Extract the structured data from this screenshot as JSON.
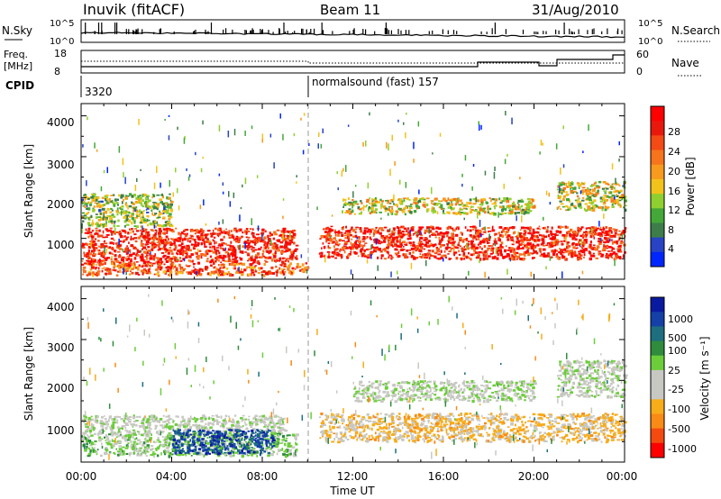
{
  "header": {
    "station": "Inuvik (fitACF)",
    "beam": "Beam 11",
    "date": "31/Aug/2010"
  },
  "panels": {
    "nsky": {
      "left_label": "N.Sky",
      "left_ticks": [
        "10^5",
        "10^0"
      ],
      "right_label": "N.Search",
      "right_ticks": [
        "10^5",
        "10^0"
      ]
    },
    "freq": {
      "left_label_1": "Freq.",
      "left_label_2": "[MHz]",
      "left_ticks": [
        "18",
        "8"
      ],
      "right_label": "Nave",
      "right_ticks": [
        "60",
        "0"
      ]
    },
    "cpid": {
      "label": "CPID",
      "first": "3320",
      "second": "normalsound (fast) 157"
    }
  },
  "colors": {
    "power_scale": [
      "#0026ff",
      "#2744c4",
      "#3d7d4a",
      "#44a838",
      "#8fd030",
      "#f2c21a",
      "#f79a1e",
      "#f7731c",
      "#f44a15",
      "#e8190c",
      "#ff0000"
    ],
    "velocity_scale": [
      "#ff0000",
      "#f44a10",
      "#f98a16",
      "#f7ac19",
      "#c8c8c3",
      "#c8c8c3",
      "#6ccd3a",
      "#2e8c3c",
      "#1d6e7f",
      "#1440a8",
      "#0a1aa0"
    ]
  },
  "power_colorbar": {
    "label": "Power [dB]",
    "ticks": [
      "28",
      "24",
      "20",
      "16",
      "12",
      "8",
      "4"
    ]
  },
  "velocity_colorbar": {
    "label": "Velocity [m s⁻¹]",
    "ticks": [
      "1000",
      "500",
      "100",
      "25",
      "-25",
      "-100",
      "-500",
      "-1000"
    ]
  },
  "chart_data": [
    {
      "type": "heatmap",
      "title": "Power",
      "ylabel": "Slant Range [km]",
      "yticks": [
        "4000",
        "3000",
        "2000",
        "1000"
      ],
      "ylim": [
        180,
        4500
      ],
      "xlim": [
        0,
        24
      ],
      "color_label": "Power [dB]",
      "color_range": [
        0,
        30
      ],
      "regions": [
        {
          "t0": 0.0,
          "t1": 9.5,
          "r0": 600,
          "r1": 1450,
          "value": 26
        },
        {
          "t0": 0.0,
          "t1": 10.0,
          "r0": 300,
          "r1": 600,
          "value": 22
        },
        {
          "t0": 0.0,
          "t1": 4.0,
          "r0": 1500,
          "r1": 2300,
          "value": 12
        },
        {
          "t0": 10.5,
          "t1": 24.0,
          "r0": 700,
          "r1": 1500,
          "value": 26
        },
        {
          "t0": 11.5,
          "t1": 20.0,
          "r0": 1800,
          "r1": 2200,
          "value": 14
        },
        {
          "t0": 21.0,
          "t1": 24.0,
          "r0": 1900,
          "r1": 2600,
          "value": 14
        }
      ]
    },
    {
      "type": "heatmap",
      "title": "Velocity",
      "ylabel": "Slant Range [km]",
      "yticks": [
        "4000",
        "3000",
        "2000",
        "1000"
      ],
      "ylim": [
        180,
        4500
      ],
      "xlim": [
        0,
        24
      ],
      "xlabel": "Time UT",
      "xticks": [
        "00:00",
        "04:00",
        "08:00",
        "12:00",
        "16:00",
        "20:00",
        "00:00"
      ],
      "color_label": "Velocity [m s⁻¹]",
      "color_range": [
        -1000,
        1000
      ],
      "regions": [
        {
          "t0": 0.0,
          "t1": 9.0,
          "r0": 900,
          "r1": 1350,
          "value": 0
        },
        {
          "t0": 0.0,
          "t1": 9.5,
          "r0": 350,
          "r1": 900,
          "value": 150
        },
        {
          "t0": 4.0,
          "t1": 8.5,
          "r0": 400,
          "r1": 1000,
          "value": 700
        },
        {
          "t0": 10.5,
          "t1": 24.0,
          "r0": 700,
          "r1": 1400,
          "value": -300
        },
        {
          "t0": 12.0,
          "t1": 20.0,
          "r0": 1700,
          "r1": 2200,
          "value": 0
        },
        {
          "t0": 21.0,
          "t1": 24.0,
          "r0": 1800,
          "r1": 2700,
          "value": 0
        }
      ]
    }
  ]
}
